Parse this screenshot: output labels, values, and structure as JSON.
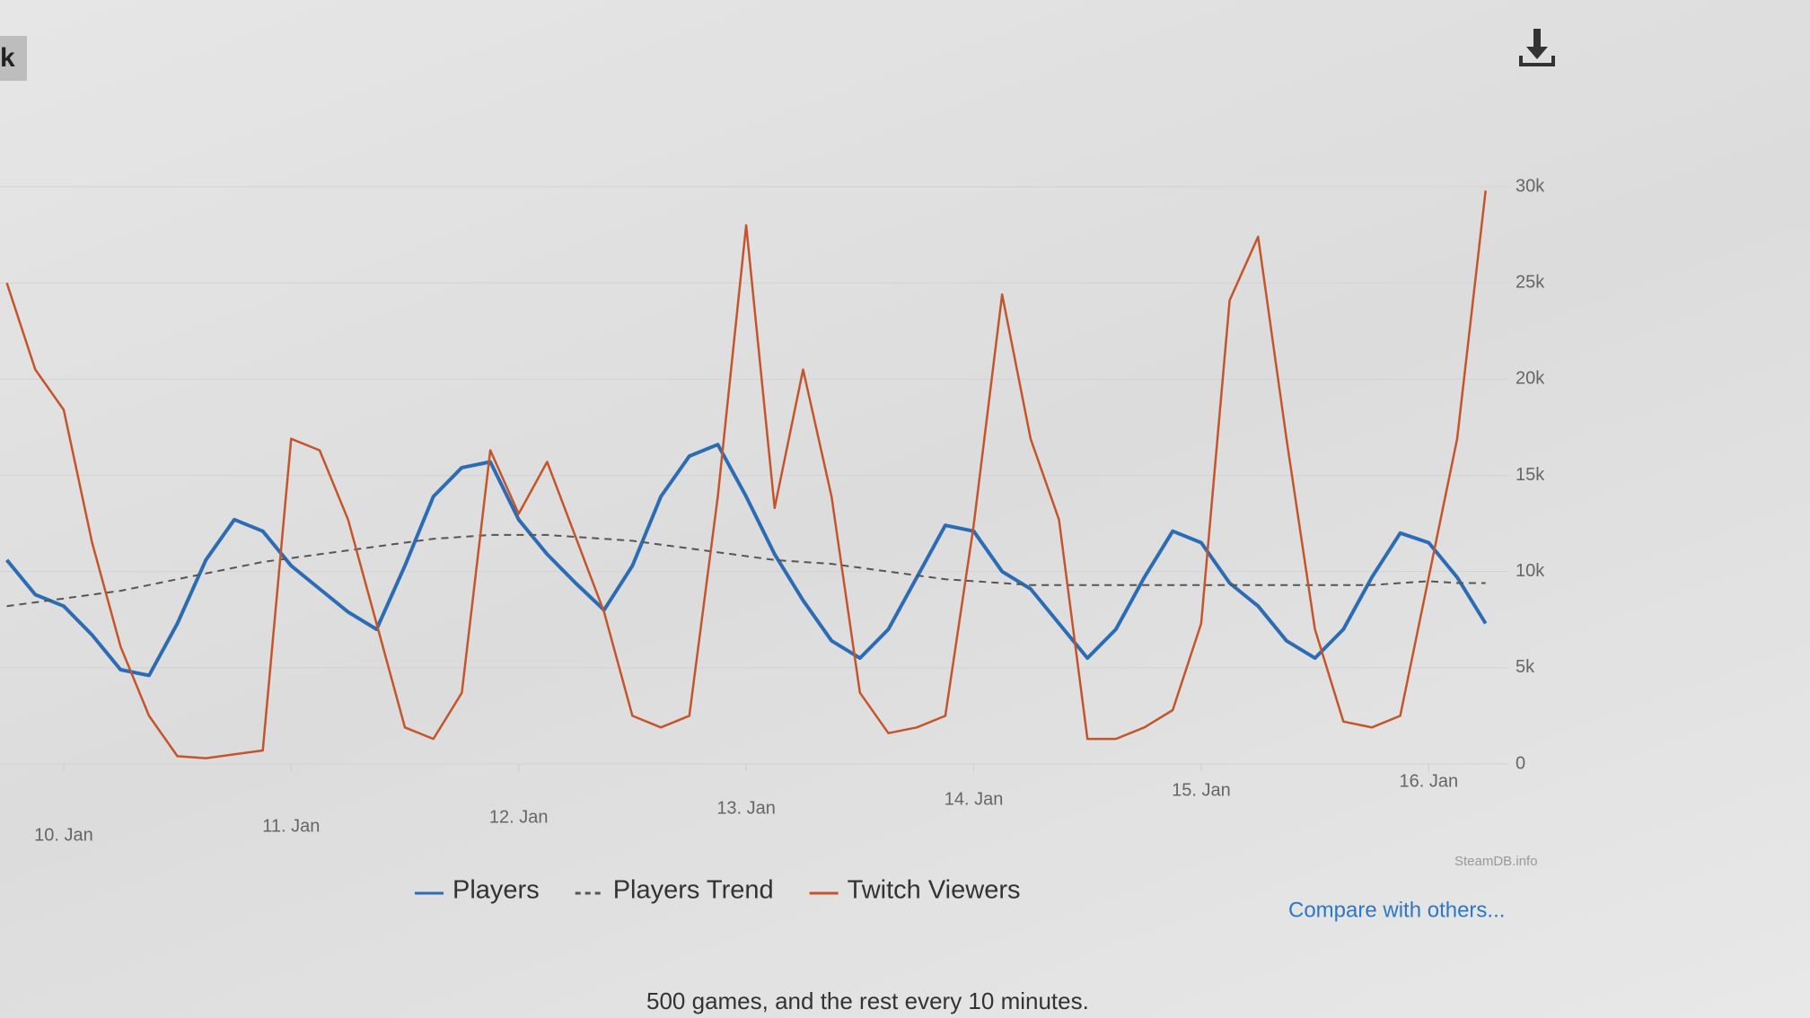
{
  "page": {
    "button_label": "k",
    "footer": "500 games, and the rest every 10 minutes."
  },
  "chart_data": {
    "type": "line",
    "credit": "SteamDB.info",
    "link": "Compare with others...",
    "x": [
      9.75,
      9.875,
      10,
      10.125,
      10.25,
      10.375,
      10.5,
      10.625,
      10.75,
      10.875,
      11,
      11.125,
      11.25,
      11.375,
      11.5,
      11.625,
      11.75,
      11.875,
      12,
      12.125,
      12.25,
      12.375,
      12.5,
      12.625,
      12.75,
      12.875,
      13,
      13.125,
      13.25,
      13.375,
      13.5,
      13.625,
      13.75,
      13.875,
      14,
      14.125,
      14.25,
      14.375,
      14.5,
      14.625,
      14.75,
      14.875,
      15,
      15.125,
      15.25,
      15.375,
      15.5,
      15.625,
      15.75,
      15.875,
      16,
      16.125,
      16.25
    ],
    "xlim": [
      9.72,
      16.35
    ],
    "xticks": [
      {
        "value": 10,
        "label": "10. Jan"
      },
      {
        "value": 11,
        "label": "11. Jan"
      },
      {
        "value": 12,
        "label": "12. Jan"
      },
      {
        "value": 13,
        "label": "13. Jan"
      },
      {
        "value": 14,
        "label": "14. Jan"
      },
      {
        "value": 15,
        "label": "15. Jan"
      },
      {
        "value": 16,
        "label": "16. Jan"
      }
    ],
    "ylim": [
      0,
      30000
    ],
    "yticks": [
      0,
      {
        "value": 5000,
        "label": "5k"
      },
      {
        "value": 10000,
        "label": "10k"
      },
      {
        "value": 15000,
        "label": "15k"
      },
      {
        "value": 20000,
        "label": "20k"
      },
      {
        "value": 25000,
        "label": "25k"
      },
      {
        "value": 30000,
        "label": "30k"
      }
    ],
    "grid": true,
    "legend": "bottom",
    "series": [
      {
        "name": "Players",
        "color": "#2b6cb4",
        "dashed": false,
        "values": [
          10600,
          8800,
          8200,
          6700,
          4900,
          4600,
          7300,
          10600,
          12700,
          12100,
          10300,
          9100,
          7900,
          7000,
          10300,
          13900,
          15400,
          15700,
          12700,
          10900,
          9400,
          8000,
          10300,
          13900,
          16000,
          16600,
          13900,
          10900,
          8500,
          6400,
          5500,
          7000,
          9700,
          12400,
          12100,
          10000,
          9100,
          7300,
          5500,
          7000,
          9700,
          12100,
          11500,
          9400,
          8200,
          6400,
          5500,
          7000,
          9700,
          12000,
          11500,
          9700,
          7300
        ]
      },
      {
        "name": "Players Trend",
        "color": "#555555",
        "dashed": true,
        "values": [
          8200,
          8400,
          8600,
          8800,
          9000,
          9300,
          9600,
          9900,
          10200,
          10500,
          10700,
          10900,
          11100,
          11300,
          11500,
          11700,
          11800,
          11900,
          11900,
          11900,
          11800,
          11700,
          11600,
          11400,
          11200,
          11000,
          10800,
          10600,
          10500,
          10400,
          10200,
          10000,
          9800,
          9600,
          9500,
          9400,
          9300,
          9300,
          9300,
          9300,
          9300,
          9300,
          9300,
          9300,
          9300,
          9300,
          9300,
          9300,
          9300,
          9400,
          9500,
          9400,
          9400
        ]
      },
      {
        "name": "Twitch Viewers",
        "color": "#c4552b",
        "dashed": false,
        "values": [
          25000,
          20500,
          18400,
          11500,
          6100,
          2500,
          400,
          300,
          500,
          700,
          16900,
          16300,
          12700,
          7300,
          1900,
          1300,
          3700,
          16300,
          13000,
          15700,
          11800,
          7900,
          2500,
          1900,
          2500,
          13900,
          28000,
          13300,
          20500,
          13900,
          3700,
          1600,
          1900,
          2500,
          12400,
          24400,
          16900,
          12700,
          1300,
          1300,
          1900,
          2800,
          7300,
          24100,
          27400,
          16900,
          7000,
          2200,
          1900,
          2500,
          9700,
          16900,
          29800
        ]
      }
    ]
  }
}
